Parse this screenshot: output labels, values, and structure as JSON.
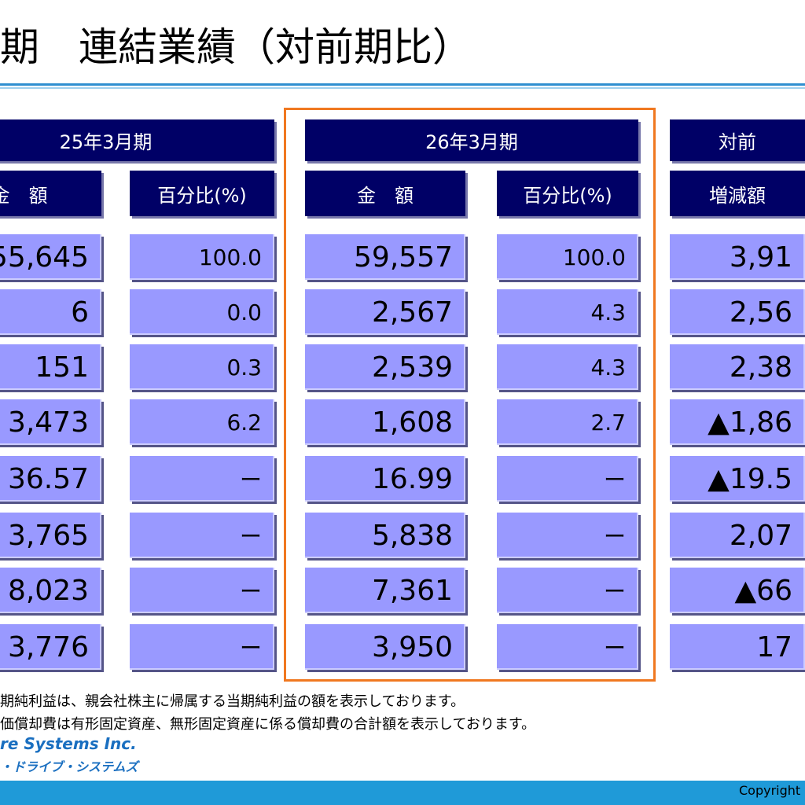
{
  "title": "期　連結業績（対前期比）",
  "groups": [
    {
      "label": "25年3月期",
      "columns": [
        {
          "header": "金　額",
          "cells": [
            "55,645",
            "6",
            "151",
            "3,473",
            "36.57",
            "3,765",
            "8,023",
            "3,776"
          ]
        },
        {
          "header": "百分比(%)",
          "cells": [
            "100.0",
            "0.0",
            "0.3",
            "6.2",
            "ー",
            "ー",
            "ー",
            "ー"
          ]
        }
      ]
    },
    {
      "label": "26年3月期",
      "columns": [
        {
          "header": "金　額",
          "cells": [
            "59,557",
            "2,567",
            "2,539",
            "1,608",
            "16.99",
            "5,838",
            "7,361",
            "3,950"
          ]
        },
        {
          "header": "百分比(%)",
          "cells": [
            "100.0",
            "4.3",
            "4.3",
            "2.7",
            "ー",
            "ー",
            "ー",
            "ー"
          ]
        }
      ]
    },
    {
      "label": "対前",
      "columns": [
        {
          "header": "増減額",
          "cells": [
            "3,91",
            "2,56",
            "2,38",
            "▲1,86",
            "▲19.5",
            "2,07",
            "▲66",
            "17"
          ]
        }
      ]
    }
  ],
  "notes": [
    "期純利益は、親会社株主に帰属する当期純利益の額を表示しております。",
    "価償却費は有形固定資産、無形固定資産に係る償却費の合計額を表示しております。"
  ],
  "logo": {
    "english": "re Systems Inc.",
    "japanese": "・ドライブ・システムズ"
  },
  "copyright": "Copyright"
}
